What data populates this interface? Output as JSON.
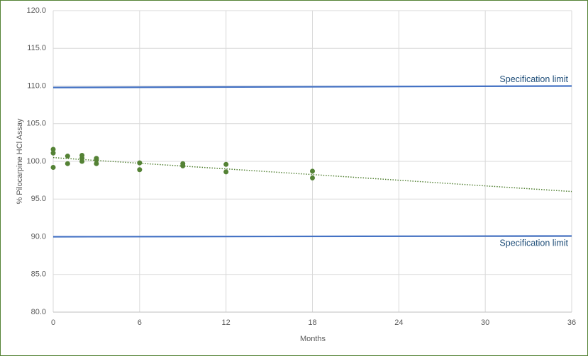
{
  "chart_data": {
    "type": "scatter",
    "x_label": "Months",
    "y_label": "% Pilocarpine HCl Assay",
    "xlim": [
      0,
      36
    ],
    "xticks": [
      0,
      6,
      12,
      18,
      24,
      30,
      36
    ],
    "ylim": [
      80,
      120
    ],
    "yticks": [
      {
        "value": 80,
        "label": "80.0"
      },
      {
        "value": 85,
        "label": "85.0"
      },
      {
        "value": 90,
        "label": "90.0"
      },
      {
        "value": 95,
        "label": "95.0"
      },
      {
        "value": 100,
        "label": "100.0"
      },
      {
        "value": 105,
        "label": "105.0"
      },
      {
        "value": 110,
        "label": "110.0"
      },
      {
        "value": 115,
        "label": "115.0"
      },
      {
        "value": 120,
        "label": "120.0"
      }
    ],
    "grid": true,
    "series": [
      {
        "mode": "markers",
        "color": "#548235",
        "x": [
          0,
          0,
          0,
          1,
          1,
          2,
          2,
          2,
          3,
          3,
          3,
          6,
          6,
          9,
          9,
          12,
          12,
          18,
          18
        ],
        "values": [
          101.6,
          101.1,
          99.2,
          100.7,
          99.7,
          100.8,
          100.4,
          100.0,
          100.4,
          100.2,
          99.7,
          99.8,
          98.9,
          99.7,
          99.4,
          99.6,
          98.6,
          98.7,
          97.8
        ]
      },
      {
        "mode": "dotted-line",
        "color": "#548235",
        "x": [
          0,
          36
        ],
        "values": [
          100.5,
          96.0
        ]
      },
      {
        "mode": "line",
        "name": "Specification limit",
        "color": "#4472c4",
        "x": [
          0,
          36
        ],
        "values": [
          109.8,
          110.0
        ]
      },
      {
        "mode": "line",
        "name": "Specification limit",
        "color": "#4472c4",
        "x": [
          0,
          36
        ],
        "values": [
          90.0,
          90.1
        ]
      }
    ]
  }
}
